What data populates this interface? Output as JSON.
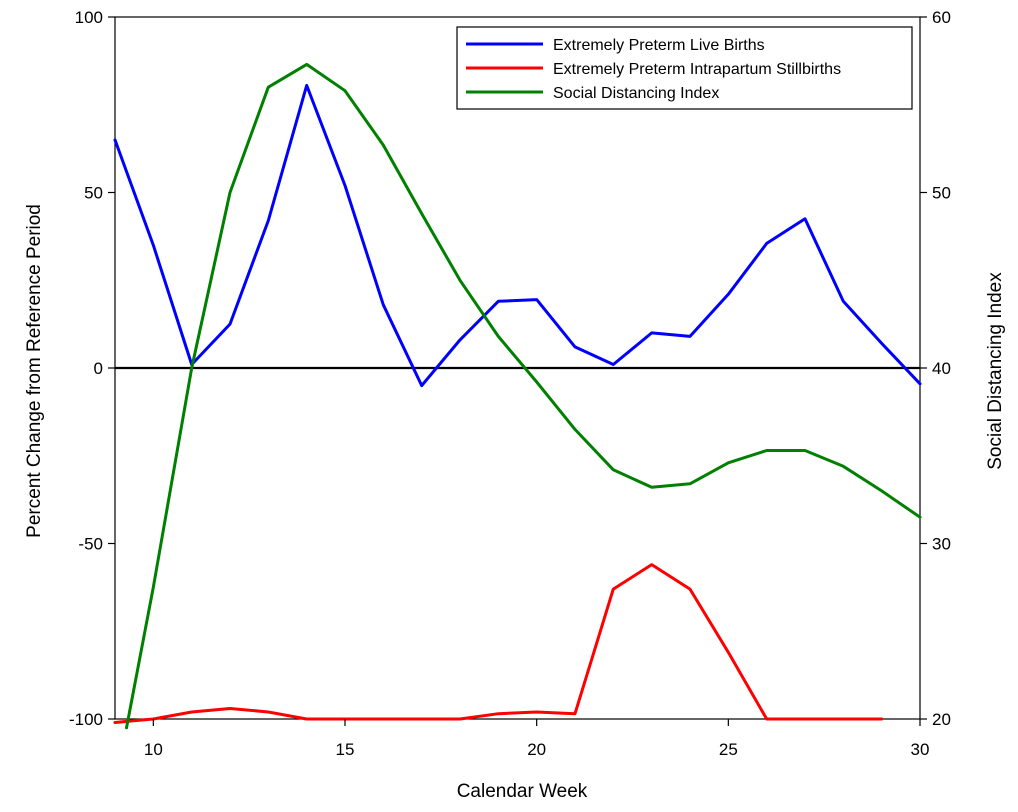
{
  "chart_data": {
    "type": "line",
    "title": "",
    "xlabel": "Calendar Week",
    "ylabel": "Percent Change from Reference Period",
    "y2label": "Social Distancing Index",
    "xlim": [
      9,
      30
    ],
    "ylim": [
      -100,
      100
    ],
    "y2lim": [
      20,
      60
    ],
    "x_ticks": [
      10,
      15,
      20,
      25,
      30
    ],
    "y_ticks": [
      -100,
      -50,
      0,
      50,
      100
    ],
    "y2_ticks": [
      20,
      30,
      40,
      50,
      60
    ],
    "reference_line_y": 0,
    "legend_position": "top-right",
    "grid": false,
    "series": [
      {
        "name": "Extremely Preterm Live Births",
        "color": "#0000ff",
        "axis": "left",
        "x": [
          9,
          10,
          11,
          12,
          13,
          14,
          15,
          16,
          17,
          18,
          19,
          20,
          21,
          22,
          23,
          24,
          25,
          26,
          27,
          28,
          29,
          30
        ],
        "y": [
          65,
          35,
          1,
          12.5,
          42,
          80.5,
          52,
          18,
          -5,
          8,
          19,
          19.5,
          6,
          1,
          10,
          9,
          21,
          35.5,
          42.5,
          19,
          7,
          -4.5
        ]
      },
      {
        "name": "Extremely Preterm Intrapartum Stillbirths",
        "color": "#ff0000",
        "axis": "left",
        "x": [
          9,
          10,
          11,
          12,
          13,
          14,
          15,
          16,
          17,
          18,
          19,
          20,
          21,
          22,
          23,
          24,
          25,
          26,
          27,
          28,
          29
        ],
        "y": [
          -101,
          -100,
          -98,
          -97,
          -98,
          -100,
          -100,
          -100,
          -100,
          -100,
          -98.5,
          -98,
          -98.5,
          -63,
          -56,
          -63,
          -81,
          -100,
          -100,
          -100,
          -100
        ]
      },
      {
        "name": "Social Distancing Index",
        "color": "#008000",
        "axis": "right",
        "x": [
          9.3,
          10,
          11,
          12,
          13,
          14,
          15,
          16,
          17,
          18,
          19,
          20,
          21,
          22,
          23,
          24,
          25,
          26,
          27,
          28,
          29,
          30
        ],
        "y": [
          19.5,
          27.5,
          40,
          50,
          56,
          57.3,
          55.8,
          52.7,
          48.8,
          45,
          41.8,
          39.2,
          36.5,
          34.2,
          33.2,
          33.4,
          34.6,
          35.3,
          35.3,
          34.4,
          33,
          31.5
        ]
      }
    ]
  }
}
